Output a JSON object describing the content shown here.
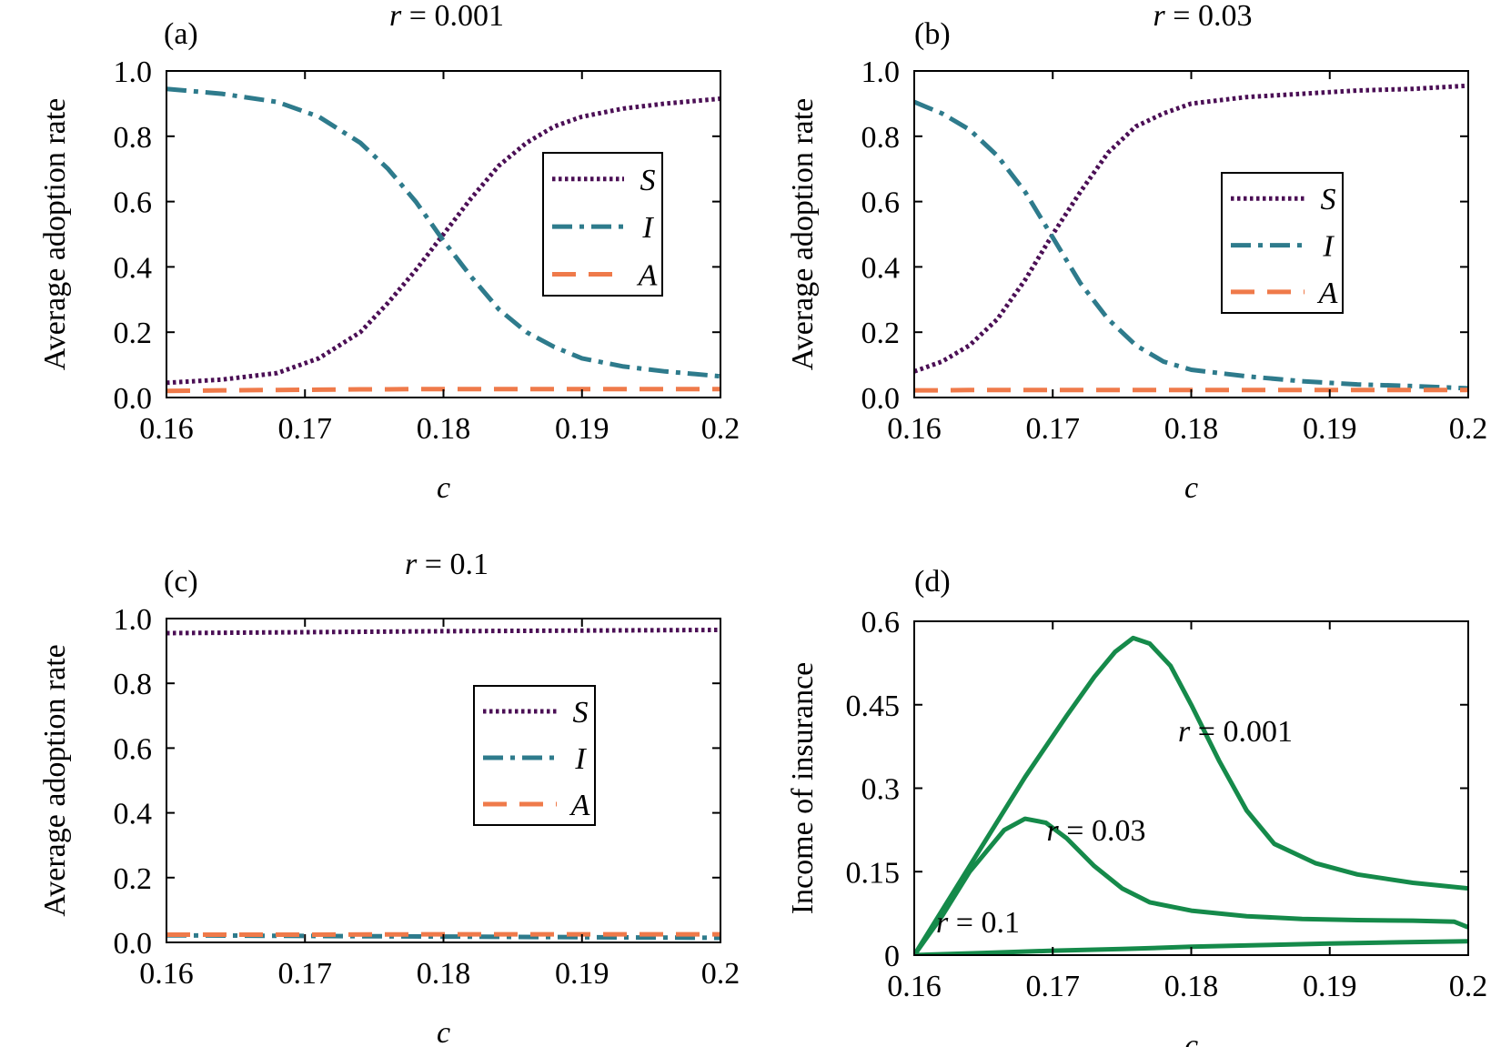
{
  "colors": {
    "S": "#4b0f55",
    "I": "#2e7b8c",
    "A": "#ef7a4a",
    "income": "#158a4a"
  },
  "chart_data": [
    {
      "type": "line",
      "panel": "(a)",
      "title_var": "r",
      "title_value": "= 0.001",
      "xlabel": "c",
      "ylabel": "Average adoption rate",
      "xlim": [
        0.16,
        0.2
      ],
      "ylim": [
        0,
        1
      ],
      "xticks": [
        0.16,
        0.17,
        0.18,
        0.19,
        0.2
      ],
      "xtick_labels": [
        "0.16",
        "0.17",
        "0.18",
        "0.19",
        "0.2"
      ],
      "yticks": [
        0,
        0.2,
        0.4,
        0.6,
        0.8,
        1.0
      ],
      "ytick_labels": [
        "0.0",
        "0.2",
        "0.4",
        "0.6",
        "0.8",
        "1.0"
      ],
      "legend_position": "upper-right",
      "x": [
        0.16,
        0.164,
        0.168,
        0.171,
        0.174,
        0.176,
        0.178,
        0.18,
        0.182,
        0.184,
        0.186,
        0.188,
        0.19,
        0.193,
        0.196,
        0.2
      ],
      "series": [
        {
          "name": "S",
          "style": "dotted",
          "values": [
            0.045,
            0.055,
            0.075,
            0.12,
            0.2,
            0.29,
            0.39,
            0.5,
            0.61,
            0.71,
            0.78,
            0.83,
            0.86,
            0.885,
            0.9,
            0.915
          ]
        },
        {
          "name": "I",
          "style": "dashdot",
          "values": [
            0.945,
            0.93,
            0.905,
            0.86,
            0.78,
            0.7,
            0.6,
            0.48,
            0.37,
            0.27,
            0.2,
            0.155,
            0.12,
            0.095,
            0.08,
            0.065
          ]
        },
        {
          "name": "A",
          "style": "dashed",
          "values": [
            0.02,
            0.022,
            0.023,
            0.024,
            0.025,
            0.025,
            0.026,
            0.026,
            0.026,
            0.026,
            0.026,
            0.026,
            0.026,
            0.026,
            0.026,
            0.026
          ]
        }
      ]
    },
    {
      "type": "line",
      "panel": "(b)",
      "title_var": "r",
      "title_value": "= 0.03",
      "xlabel": "c",
      "ylabel": "Average adoption rate",
      "xlim": [
        0.16,
        0.2
      ],
      "ylim": [
        0,
        1
      ],
      "xticks": [
        0.16,
        0.17,
        0.18,
        0.19,
        0.2
      ],
      "xtick_labels": [
        "0.16",
        "0.17",
        "0.18",
        "0.19",
        "0.2"
      ],
      "yticks": [
        0,
        0.2,
        0.4,
        0.6,
        0.8,
        1.0
      ],
      "ytick_labels": [
        "0.0",
        "0.2",
        "0.4",
        "0.6",
        "0.8",
        "1.0"
      ],
      "legend_position": "center-right",
      "x": [
        0.16,
        0.162,
        0.164,
        0.166,
        0.168,
        0.17,
        0.172,
        0.174,
        0.176,
        0.178,
        0.18,
        0.184,
        0.188,
        0.192,
        0.196,
        0.2
      ],
      "series": [
        {
          "name": "S",
          "style": "dotted",
          "values": [
            0.08,
            0.11,
            0.16,
            0.24,
            0.36,
            0.5,
            0.63,
            0.75,
            0.83,
            0.87,
            0.9,
            0.92,
            0.93,
            0.94,
            0.945,
            0.955
          ]
        },
        {
          "name": "I",
          "style": "dashdot",
          "values": [
            0.905,
            0.87,
            0.82,
            0.74,
            0.63,
            0.49,
            0.35,
            0.24,
            0.16,
            0.11,
            0.085,
            0.065,
            0.05,
            0.04,
            0.035,
            0.028
          ]
        },
        {
          "name": "A",
          "style": "dashed",
          "values": [
            0.022,
            0.022,
            0.023,
            0.023,
            0.023,
            0.023,
            0.023,
            0.023,
            0.023,
            0.023,
            0.023,
            0.023,
            0.023,
            0.023,
            0.023,
            0.023
          ]
        }
      ]
    },
    {
      "type": "line",
      "panel": "(c)",
      "title_var": "r",
      "title_value": "= 0.1",
      "xlabel": "c",
      "ylabel": "Average adoption rate",
      "xlim": [
        0.16,
        0.2
      ],
      "ylim": [
        0,
        1
      ],
      "xticks": [
        0.16,
        0.17,
        0.18,
        0.19,
        0.2
      ],
      "xtick_labels": [
        "0.16",
        "0.17",
        "0.18",
        "0.19",
        "0.2"
      ],
      "yticks": [
        0,
        0.2,
        0.4,
        0.6,
        0.8,
        1.0
      ],
      "ytick_labels": [
        "0.0",
        "0.2",
        "0.4",
        "0.6",
        "0.8",
        "1.0"
      ],
      "legend_position": "center-right",
      "x": [
        0.16,
        0.17,
        0.18,
        0.19,
        0.2
      ],
      "series": [
        {
          "name": "S",
          "style": "dotted",
          "values": [
            0.955,
            0.958,
            0.961,
            0.963,
            0.965
          ]
        },
        {
          "name": "I",
          "style": "dashdot",
          "values": [
            0.022,
            0.02,
            0.018,
            0.016,
            0.014
          ]
        },
        {
          "name": "A",
          "style": "dashed",
          "values": [
            0.024,
            0.024,
            0.025,
            0.025,
            0.025
          ]
        }
      ]
    },
    {
      "type": "line",
      "panel": "(d)",
      "xlabel": "c",
      "ylabel": "Income of insurance",
      "xlim": [
        0.16,
        0.2
      ],
      "ylim": [
        0,
        0.6
      ],
      "xticks": [
        0.16,
        0.17,
        0.18,
        0.19,
        0.2
      ],
      "xtick_labels": [
        "0.16",
        "0.17",
        "0.18",
        "0.19",
        "0.2"
      ],
      "yticks": [
        0,
        0.15,
        0.3,
        0.45,
        0.6
      ],
      "ytick_labels": [
        "0",
        "0.15",
        "0.3",
        "0.45",
        "0.6"
      ],
      "series": [
        {
          "name": "r = 0.001",
          "label_var": "r",
          "label_value": "= 0.001",
          "x": [
            0.16,
            0.164,
            0.168,
            0.171,
            0.173,
            0.1745,
            0.1758,
            0.177,
            0.1785,
            0.18,
            0.182,
            0.184,
            0.186,
            0.189,
            0.192,
            0.196,
            0.2
          ],
          "values": [
            0,
            0.16,
            0.32,
            0.43,
            0.5,
            0.545,
            0.57,
            0.56,
            0.52,
            0.45,
            0.35,
            0.26,
            0.2,
            0.165,
            0.145,
            0.13,
            0.12
          ]
        },
        {
          "name": "r = 0.03",
          "label_var": "r",
          "label_value": "= 0.03",
          "x": [
            0.16,
            0.162,
            0.164,
            0.1665,
            0.168,
            0.1695,
            0.171,
            0.173,
            0.175,
            0.177,
            0.18,
            0.184,
            0.188,
            0.192,
            0.196,
            0.199,
            0.2
          ],
          "values": [
            0,
            0.07,
            0.15,
            0.225,
            0.245,
            0.238,
            0.21,
            0.16,
            0.12,
            0.095,
            0.08,
            0.07,
            0.065,
            0.063,
            0.062,
            0.06,
            0.05
          ]
        },
        {
          "name": "r = 0.1",
          "label_var": "r",
          "label_value": "= 0.1",
          "x": [
            0.16,
            0.165,
            0.17,
            0.175,
            0.18,
            0.185,
            0.19,
            0.195,
            0.2
          ],
          "values": [
            0,
            0.004,
            0.008,
            0.011,
            0.015,
            0.018,
            0.021,
            0.023,
            0.025
          ]
        }
      ]
    }
  ]
}
